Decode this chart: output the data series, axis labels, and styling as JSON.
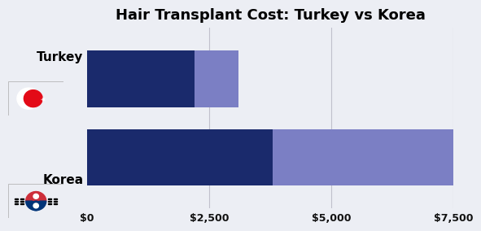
{
  "title": "Hair Transplant Cost: Turkey vs Korea",
  "categories": [
    "Turkey",
    "Korea"
  ],
  "dark_min": [
    0,
    0
  ],
  "dark_max": [
    2200,
    3800
  ],
  "light_min": [
    2200,
    3800
  ],
  "light_max": [
    3100,
    7500
  ],
  "dark_color": "#1a2a6c",
  "light_color": "#7b7fc4",
  "background_color": "#eceef4",
  "xlim": [
    0,
    7500
  ],
  "xticks": [
    0,
    2500,
    5000,
    7500
  ],
  "xticklabels": [
    "$0",
    "$2,500",
    "$5,000",
    "$7,500"
  ],
  "bar_height": 0.72,
  "title_fontsize": 13,
  "grid_color": "#c0c0cc",
  "label_fontsize": 11
}
